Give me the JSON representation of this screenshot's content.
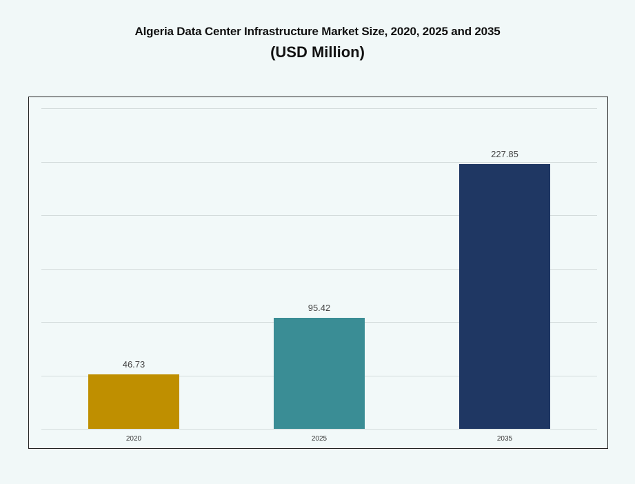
{
  "title": {
    "line1": "Algeria Data Center Infrastructure Market Size, 2020, 2025 and 2035",
    "line2": "(USD Million)"
  },
  "chart_data": {
    "type": "bar",
    "title": "Algeria Data Center Infrastructure Market Size, 2020, 2025 and 2035 (USD Million)",
    "categories": [
      "2020",
      "2025",
      "2035"
    ],
    "values": [
      46.73,
      95.42,
      227.85
    ],
    "value_labels": [
      "46.73",
      "95.42",
      "227.85"
    ],
    "colors": [
      "#bf8f00",
      "#3a8d95",
      "#1f3763"
    ],
    "xlabel": "",
    "ylabel": "",
    "ylim": [
      0,
      276
    ],
    "grid": true,
    "gridline_count": 6,
    "legend": "none"
  }
}
